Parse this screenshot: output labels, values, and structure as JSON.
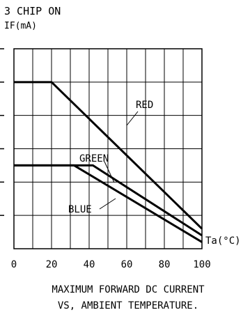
{
  "chart_data": {
    "type": "line",
    "title": "3 CHIP ON",
    "ylabel": "IF(mA)",
    "xlabel": "Ta(°C)",
    "xlim": [
      0,
      100
    ],
    "ylim": [
      0,
      60
    ],
    "x_ticks": [
      "0",
      "20",
      "40",
      "60",
      "80",
      "100"
    ],
    "grid": true,
    "series": [
      {
        "name": "RED",
        "x": [
          0,
          20,
          100
        ],
        "y": [
          50,
          50,
          6
        ]
      },
      {
        "name": "GREEN",
        "x": [
          0,
          42,
          100
        ],
        "y": [
          25,
          25,
          4
        ]
      },
      {
        "name": "BLUE",
        "x": [
          0,
          32,
          100
        ],
        "y": [
          25,
          25,
          2
        ]
      }
    ],
    "caption": [
      "MAXIMUM FORWARD DC CURRENT",
      "VS, AMBIENT TEMPERATURE."
    ]
  }
}
